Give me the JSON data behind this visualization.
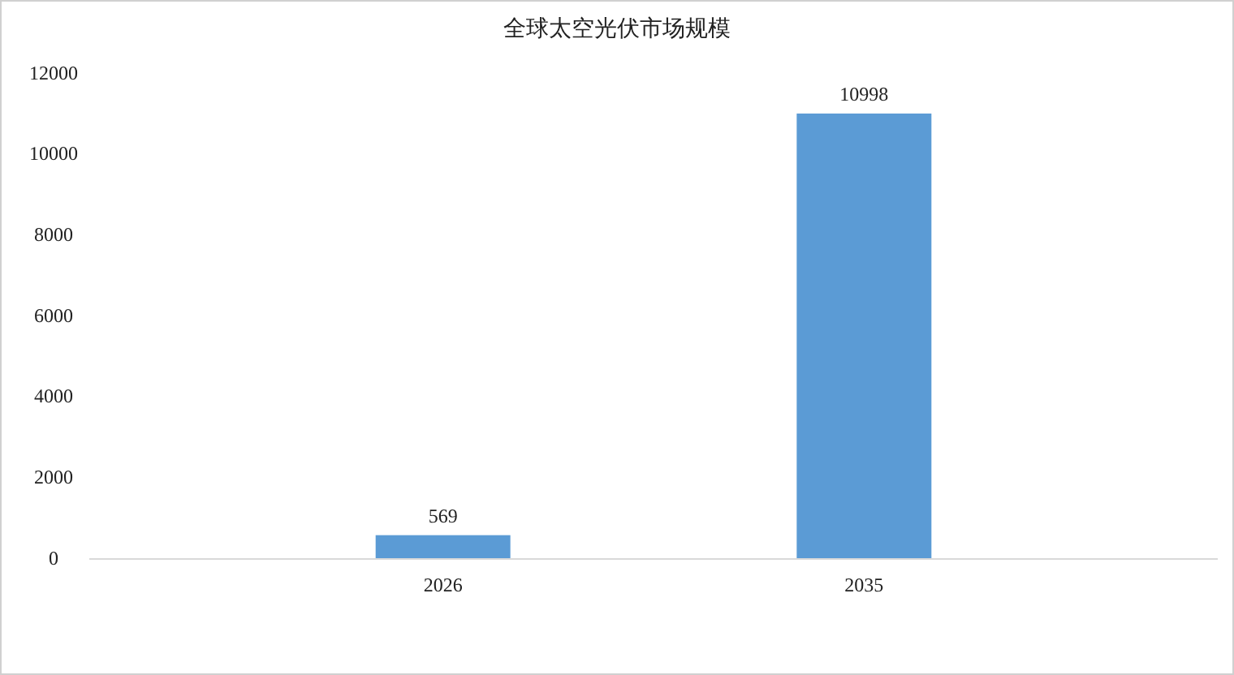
{
  "chart_data": {
    "type": "bar",
    "title": "全球太空光伏市场规模",
    "categories": [
      "2026",
      "2035"
    ],
    "values": [
      569,
      10998
    ],
    "color": "#5b9bd5",
    "ylim": [
      0,
      12000
    ],
    "yticks": [
      0,
      2000,
      4000,
      6000,
      8000,
      10000,
      12000
    ],
    "grid": false,
    "data_labels": true
  }
}
